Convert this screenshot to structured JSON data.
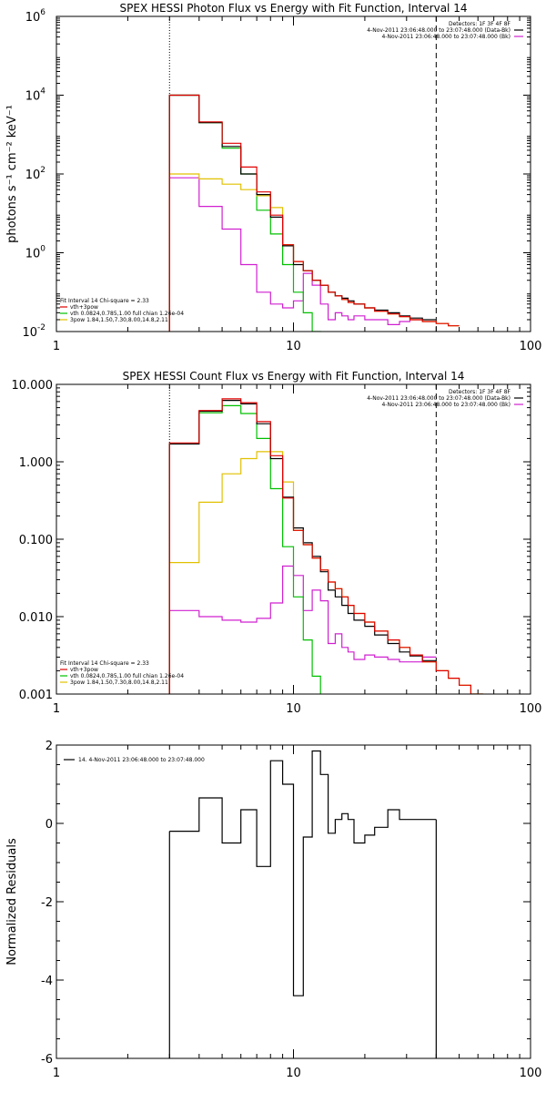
{
  "chart_data": [
    {
      "type": "line",
      "title": "SPEX HESSI Photon Flux vs Energy with Fit Function, Interval 14",
      "ylabel": "photons s<sup>-1</sup> cm<sup>-2</sup> keV<sup>-1</sup>",
      "ylabel_text": "photons s⁻¹ cm⁻² keV⁻¹",
      "xscale": "log",
      "yscale": "log",
      "xlim": [
        1,
        100
      ],
      "ylim": [
        0.01,
        1000000
      ],
      "xticks": [
        "1",
        "10",
        "100"
      ],
      "yticks": [
        {
          "v": 1000000,
          "label": "10",
          "exp": "6"
        },
        {
          "v": 10000,
          "label": "10",
          "exp": "4"
        },
        {
          "v": 100,
          "label": "10",
          "exp": "2"
        },
        {
          "v": 1,
          "label": "10",
          "exp": "0"
        },
        {
          "v": 0.01,
          "label": "10",
          "exp": "-2"
        }
      ],
      "vlines": [
        {
          "x": 3,
          "style": "dotted"
        },
        {
          "x": 40,
          "style": "dashed"
        }
      ],
      "legend_tr": [
        {
          "text": "Detectors: 1F 3F 4F 8F",
          "color": "#000"
        },
        {
          "text": "4-Nov-2011 23:06:48.000 to 23:07:48.000 (Data-Bk)",
          "color": "#000"
        },
        {
          "text": "4-Nov-2011 23:06:48.000 to 23:07:48.000 (Bk)",
          "color": "#d020d0"
        }
      ],
      "legend_bl": [
        {
          "text": "Fit Interval 14   Chi-square = 2.33",
          "color": "#000"
        },
        {
          "text": "vth+3pow",
          "color": "#e00000"
        },
        {
          "text": "vth 0.0824,0.785,1.00  full chian 1.26e-04",
          "color": "#00c000"
        },
        {
          "text": "3pow 1.84,1.50,7.30,8.00,14.8,2.11",
          "color": "#e0c000"
        }
      ],
      "edges": [
        3,
        4,
        5,
        6,
        7,
        8,
        9,
        10,
        11,
        12,
        13,
        14,
        15,
        16,
        17,
        18,
        20,
        22,
        25,
        28,
        31,
        35,
        40,
        45,
        50
      ],
      "series": [
        {
          "name": "data",
          "color": "#000",
          "values": [
            10000,
            2000,
            500,
            100,
            30,
            8,
            1.5,
            0.5,
            0.35,
            0.2,
            0.15,
            0.1,
            0.08,
            0.07,
            0.06,
            0.05,
            0.04,
            0.035,
            0.03,
            0.025,
            0.022,
            0.02,
            null,
            null
          ]
        },
        {
          "name": "vth+3pow",
          "color": "#e00000",
          "values": [
            10000,
            2100,
            600,
            150,
            35,
            9,
            1.6,
            0.6,
            0.35,
            0.2,
            0.15,
            0.1,
            0.08,
            0.065,
            0.055,
            0.05,
            0.04,
            0.033,
            0.028,
            0.024,
            0.02,
            0.018,
            0.016,
            0.014
          ]
        },
        {
          "name": "vth",
          "color": "#00c000",
          "values": [
            10000,
            2000,
            450,
            100,
            12,
            3,
            0.5,
            0.1,
            0.03,
            0.01,
            0.005,
            null,
            null,
            null,
            null,
            null,
            null,
            null,
            null,
            null,
            null,
            null,
            null,
            null
          ]
        },
        {
          "name": "3pow",
          "color": "#e0c000",
          "values": [
            100,
            75,
            55,
            40,
            28,
            14,
            1.6,
            0.6,
            0.35,
            0.2,
            0.15,
            0.1,
            0.08,
            0.065,
            0.055,
            0.05,
            0.04,
            0.033,
            0.028,
            0.024,
            0.02,
            0.018,
            0.016,
            0.014
          ]
        },
        {
          "name": "bk",
          "color": "#d020d0",
          "values": [
            80,
            15,
            4,
            0.5,
            0.1,
            0.05,
            0.04,
            0.06,
            0.3,
            0.15,
            0.05,
            0.02,
            0.03,
            0.025,
            0.02,
            0.025,
            0.02,
            0.02,
            0.015,
            0.018,
            0.02,
            null,
            null,
            null
          ]
        }
      ]
    },
    {
      "type": "line",
      "title": "SPEX HESSI Count Flux vs Energy with Fit Function, Interval 14",
      "xscale": "log",
      "yscale": "log",
      "xlim": [
        1,
        100
      ],
      "ylim": [
        0.001,
        10
      ],
      "xticks": [
        "1",
        "10",
        "100"
      ],
      "yticks": [
        {
          "v": 10,
          "label": "10.000"
        },
        {
          "v": 1,
          "label": "1.000"
        },
        {
          "v": 0.1,
          "label": "0.100"
        },
        {
          "v": 0.01,
          "label": "0.010"
        },
        {
          "v": 0.001,
          "label": "0.001"
        }
      ],
      "vlines": [
        {
          "x": 3,
          "style": "dotted"
        },
        {
          "x": 40,
          "style": "dashed"
        }
      ],
      "legend_tr": [
        {
          "text": "Detectors: 1F 3F 4F 8F",
          "color": "#000"
        },
        {
          "text": "4-Nov-2011 23:06:48.000 to 23:07:48.000 (Data-Bk)",
          "color": "#000"
        },
        {
          "text": "4-Nov-2011 23:06:48.000 to 23:07:48.000 (Bk)",
          "color": "#d020d0"
        }
      ],
      "legend_bl": [
        {
          "text": "Fit Interval 14   Chi-square = 2.33",
          "color": "#000"
        },
        {
          "text": "vth+3pow",
          "color": "#e00000"
        },
        {
          "text": "vth 0.0824,0.785,1.00  full chian 1.26e-04",
          "color": "#00c000"
        },
        {
          "text": "3pow 1.84,1.50,7.30,8.00,14.8,2.11",
          "color": "#e0c000"
        }
      ],
      "edges": [
        3,
        4,
        5,
        6,
        7,
        8,
        9,
        10,
        11,
        12,
        13,
        14,
        15,
        16,
        17,
        18,
        20,
        22,
        25,
        28,
        31,
        35,
        40,
        45,
        50,
        56,
        63,
        70
      ],
      "series": [
        {
          "name": "data",
          "color": "#000",
          "values": [
            1.7,
            4.5,
            6.2,
            5.6,
            3.1,
            1.1,
            0.35,
            0.14,
            0.09,
            0.06,
            0.038,
            0.022,
            0.018,
            0.014,
            0.011,
            0.009,
            0.0075,
            0.0058,
            0.0045,
            0.0035,
            0.0031,
            0.0027,
            null,
            null,
            null,
            null,
            null
          ]
        },
        {
          "name": "vth+3pow",
          "color": "#e00000",
          "values": [
            1.75,
            4.6,
            6.5,
            5.8,
            3.3,
            1.2,
            0.34,
            0.13,
            0.085,
            0.057,
            0.04,
            0.028,
            0.023,
            0.018,
            0.014,
            0.011,
            0.0085,
            0.0065,
            0.005,
            0.004,
            0.0032,
            0.0026,
            0.002,
            0.0016,
            0.0013,
            0.001,
            null
          ]
        },
        {
          "name": "vth",
          "color": "#00c000",
          "values": [
            1.7,
            4.3,
            5.3,
            4.2,
            2.0,
            0.45,
            0.08,
            0.018,
            0.005,
            0.0017,
            0.0008,
            null,
            null,
            null,
            null,
            null,
            null,
            null,
            null,
            null,
            null,
            null,
            null,
            null,
            null,
            null,
            null
          ]
        },
        {
          "name": "3pow",
          "color": "#e0c000",
          "values": [
            0.05,
            0.3,
            0.7,
            1.1,
            1.35,
            1.35,
            0.55,
            0.13,
            0.085,
            0.057,
            0.04,
            0.028,
            0.023,
            0.018,
            0.014,
            0.011,
            0.0085,
            0.0065,
            0.005,
            0.004,
            0.0032,
            0.0026,
            0.002,
            0.0016,
            0.0013,
            0.001,
            0.0008
          ]
        },
        {
          "name": "bk",
          "color": "#d020d0",
          "values": [
            0.012,
            0.01,
            0.009,
            0.0085,
            0.0095,
            0.015,
            0.045,
            0.034,
            0.012,
            0.022,
            0.016,
            0.0045,
            0.006,
            0.004,
            0.0035,
            0.0028,
            0.0032,
            0.003,
            0.0028,
            0.0026,
            0.0026,
            0.003,
            null,
            null,
            null,
            null,
            null
          ]
        }
      ]
    },
    {
      "type": "line",
      "ylabel_text": "Normalized Residuals",
      "xscale": "log",
      "yscale": "linear",
      "xlim": [
        1,
        100
      ],
      "ylim": [
        -6,
        2
      ],
      "xticks": [
        "1",
        "10",
        "100"
      ],
      "yticks": [
        {
          "v": 2,
          "label": "2"
        },
        {
          "v": 0,
          "label": "0"
        },
        {
          "v": -2,
          "label": "-2"
        },
        {
          "v": -4,
          "label": "-4"
        },
        {
          "v": -6,
          "label": "-6"
        }
      ],
      "legend_tl": [
        {
          "text": "14.  4-Nov-2011 23:06:48.000 to 23:07:48.000",
          "color": "#000"
        }
      ],
      "edges": [
        3,
        4,
        5,
        6,
        7,
        8,
        9,
        10,
        11,
        12,
        13,
        14,
        15,
        16,
        17,
        18,
        20,
        22,
        25,
        28,
        31,
        35,
        40
      ],
      "series": [
        {
          "name": "residuals",
          "color": "#000",
          "values": [
            -0.2,
            0.65,
            -0.5,
            0.35,
            -1.1,
            1.6,
            1.0,
            -4.4,
            -0.35,
            1.85,
            1.25,
            -0.25,
            0.1,
            0.25,
            0.1,
            -0.5,
            -0.3,
            -0.1,
            0.35,
            0.1,
            0.1,
            0.1
          ]
        }
      ]
    }
  ]
}
